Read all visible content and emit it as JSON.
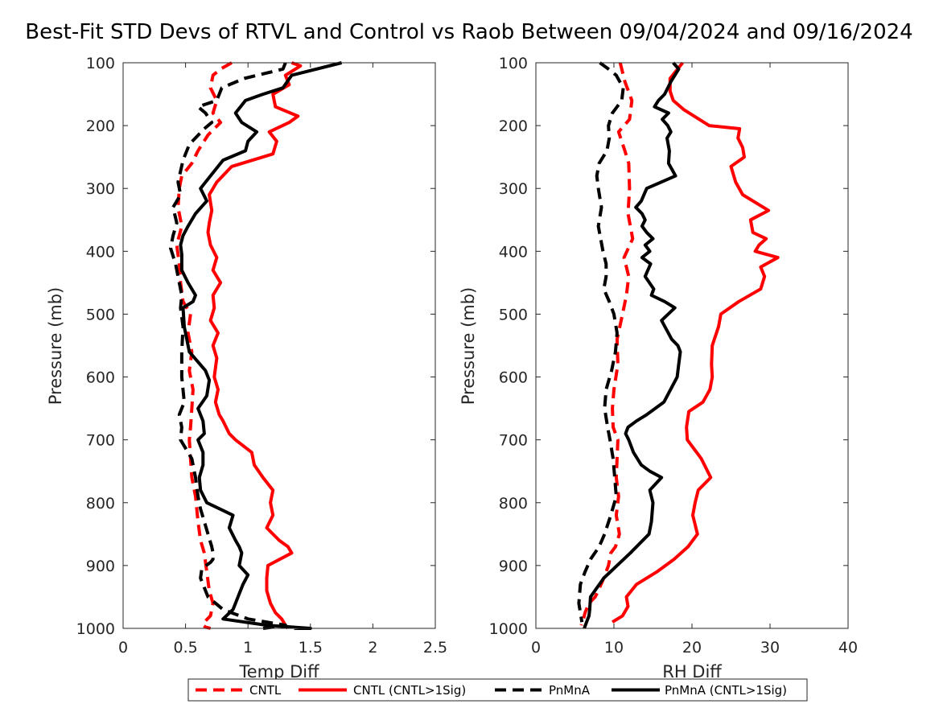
{
  "title": "Best-Fit STD Devs of RTVL and Control vs Raob Between 09/04/2024 and 09/16/2024",
  "legend": {
    "entries": [
      {
        "label": "CNTL",
        "color": "#ff0000",
        "dashed": true
      },
      {
        "label": "CNTL (CNTL>1Sig)",
        "color": "#ff0000",
        "dashed": false
      },
      {
        "label": "PnMnA",
        "color": "#000000",
        "dashed": true
      },
      {
        "label": "PnMnA (CNTL>1Sig)",
        "color": "#000000",
        "dashed": false
      }
    ]
  },
  "chart_data": [
    {
      "type": "line",
      "xlabel": "Temp Diff",
      "ylabel": "Pressure (mb)",
      "xlim": [
        0,
        2.5
      ],
      "ylim": [
        100,
        1000
      ],
      "y_reversed": true,
      "grid": false,
      "xticks": [
        "0",
        "0.5",
        "1",
        "1.5",
        "2",
        "2.5"
      ],
      "yticks": [
        "100",
        "200",
        "300",
        "400",
        "500",
        "600",
        "700",
        "800",
        "900",
        "1000"
      ],
      "series": [
        {
          "name": "CNTL",
          "color": "#ff0000",
          "dashed": true,
          "x": [
            0.87,
            0.78,
            0.72,
            0.7,
            0.75,
            0.72,
            0.78,
            0.68,
            0.6,
            0.55,
            0.47,
            0.45,
            0.44,
            0.47,
            0.43,
            0.45,
            0.46,
            0.48,
            0.54,
            0.52,
            0.55,
            0.53,
            0.56,
            0.55,
            0.54,
            0.53,
            0.54,
            0.55,
            0.58,
            0.6,
            0.62,
            0.65,
            0.67,
            0.69,
            0.72,
            0.7,
            0.65,
            0.64,
            0.66,
            0.7
          ],
          "y": [
            100,
            110,
            120,
            140,
            160,
            180,
            195,
            215,
            240,
            260,
            280,
            300,
            330,
            360,
            390,
            420,
            450,
            480,
            500,
            530,
            560,
            590,
            620,
            650,
            680,
            700,
            730,
            760,
            790,
            830,
            860,
            880,
            910,
            940,
            960,
            980,
            990,
            995,
            998,
            1000
          ]
        },
        {
          "name": "CNTL (CNTL>1Sig)",
          "color": "#ff0000",
          "dashed": true,
          "solid": true,
          "x": [
            1.35,
            1.42,
            1.3,
            1.33,
            1.2,
            1.22,
            1.4,
            1.33,
            1.17,
            1.23,
            1.2,
            0.87,
            0.75,
            0.69,
            0.71,
            0.69,
            0.68,
            0.7,
            0.75,
            0.72,
            0.78,
            0.72,
            0.73,
            0.7,
            0.76,
            0.72,
            0.75,
            0.73,
            0.76,
            0.74,
            0.77,
            0.8,
            0.85,
            0.9,
            1.03,
            1.05,
            1.12,
            1.2,
            1.18,
            1.2,
            1.15,
            1.25,
            1.32,
            1.35,
            1.16,
            1.15,
            1.15,
            1.18,
            1.22,
            1.27,
            1.3,
            1.32
          ],
          "y": [
            100,
            105,
            120,
            135,
            150,
            170,
            185,
            195,
            210,
            225,
            245,
            265,
            290,
            310,
            335,
            355,
            370,
            390,
            410,
            430,
            450,
            470,
            490,
            510,
            530,
            550,
            570,
            600,
            620,
            640,
            660,
            670,
            690,
            700,
            720,
            740,
            760,
            780,
            800,
            820,
            840,
            860,
            870,
            880,
            900,
            920,
            940,
            960,
            975,
            985,
            995,
            1000
          ]
        },
        {
          "name": "PnMnA",
          "color": "#000000",
          "dashed": true,
          "x": [
            1.3,
            1.28,
            0.97,
            0.79,
            0.75,
            0.6,
            0.66,
            0.71,
            0.65,
            0.53,
            0.48,
            0.44,
            0.46,
            0.4,
            0.43,
            0.4,
            0.38,
            0.42,
            0.45,
            0.47,
            0.46,
            0.48,
            0.47,
            0.47,
            0.49,
            0.45,
            0.47,
            0.46,
            0.55,
            0.58,
            0.6,
            0.62,
            0.65,
            0.68,
            0.71,
            0.72,
            0.72,
            0.7,
            0.63,
            0.62,
            0.68,
            0.8,
            1.0,
            1.3,
            1.2,
            1.12
          ],
          "y": [
            100,
            110,
            125,
            140,
            160,
            170,
            180,
            195,
            205,
            230,
            255,
            290,
            310,
            330,
            355,
            375,
            395,
            420,
            450,
            470,
            490,
            520,
            560,
            600,
            640,
            660,
            680,
            700,
            730,
            760,
            790,
            810,
            830,
            850,
            870,
            880,
            890,
            895,
            905,
            920,
            950,
            970,
            985,
            995,
            998,
            1000
          ]
        },
        {
          "name": "PnMnA (CNTL>1Sig)",
          "color": "#000000",
          "dashed": false,
          "solid": true,
          "x": [
            1.75,
            1.35,
            1.28,
            1.12,
            0.98,
            0.9,
            0.95,
            1.07,
            1.0,
            0.98,
            0.8,
            0.72,
            0.62,
            0.67,
            0.58,
            0.52,
            0.48,
            0.46,
            0.47,
            0.47,
            0.52,
            0.58,
            0.56,
            0.48,
            0.49,
            0.53,
            0.66,
            0.69,
            0.67,
            0.6,
            0.64,
            0.65,
            0.6,
            0.64,
            0.64,
            0.61,
            0.62,
            0.67,
            0.88,
            0.85,
            0.9,
            0.93,
            0.95,
            0.93,
            1.0,
            0.96,
            0.92,
            0.88,
            0.8,
            1.15,
            1.5,
            1.37
          ],
          "y": [
            100,
            120,
            140,
            150,
            160,
            180,
            195,
            210,
            225,
            240,
            255,
            275,
            300,
            320,
            340,
            360,
            375,
            390,
            405,
            430,
            450,
            470,
            480,
            490,
            520,
            560,
            590,
            605,
            630,
            650,
            670,
            690,
            700,
            720,
            740,
            760,
            780,
            800,
            820,
            840,
            860,
            870,
            880,
            900,
            915,
            930,
            950,
            970,
            985,
            995,
            1000,
            1000
          ]
        }
      ]
    },
    {
      "type": "line",
      "xlabel": "RH Diff",
      "ylabel": "Pressure (mb)",
      "xlim": [
        0,
        40
      ],
      "ylim": [
        100,
        1000
      ],
      "y_reversed": true,
      "grid": false,
      "xticks": [
        "0",
        "10",
        "20",
        "30",
        "40"
      ],
      "yticks": [
        "100",
        "200",
        "300",
        "400",
        "500",
        "600",
        "700",
        "800",
        "900",
        "1000"
      ],
      "series": [
        {
          "name": "CNTL",
          "color": "#ff0000",
          "dashed": true,
          "x": [
            10.8,
            11.4,
            12.3,
            12.0,
            10.6,
            11.4,
            11.9,
            12.0,
            11.8,
            12.4,
            11.3,
            11.9,
            11.6,
            11.1,
            10.4,
            10.5,
            10.0,
            9.8,
            9.9,
            10.5,
            10.4,
            10.3,
            10.6,
            10.3,
            10.7,
            10.2,
            9.6,
            9.3,
            8.7,
            8.0,
            7.6,
            6.8,
            6.3,
            6.1,
            5.8
          ],
          "y": [
            100,
            130,
            160,
            190,
            210,
            240,
            260,
            300,
            340,
            380,
            410,
            440,
            470,
            500,
            540,
            580,
            620,
            650,
            680,
            700,
            730,
            760,
            790,
            820,
            850,
            870,
            880,
            900,
            920,
            940,
            950,
            960,
            975,
            985,
            995
          ]
        },
        {
          "name": "CNTL (CNTL>1Sig)",
          "color": "#ff0000",
          "dashed": false,
          "solid": true,
          "x": [
            18.8,
            17.2,
            17.2,
            17.6,
            19.0,
            22.2,
            26.1,
            25.9,
            26.5,
            26.7,
            25.0,
            25.6,
            26.5,
            29.8,
            27.5,
            27.8,
            29.5,
            28.6,
            28.1,
            31.0,
            28.8,
            29.3,
            28.8,
            26.0,
            23.7,
            23.4,
            22.6,
            22.5,
            22.6,
            22.3,
            21.4,
            19.6,
            19.3,
            19.4,
            21.2,
            22.4,
            20.8,
            20.4,
            20.1,
            20.7,
            19.5,
            17.7,
            15.5,
            12.9,
            11.6,
            11.8,
            11.1,
            9.8
          ],
          "y": [
            100,
            125,
            145,
            160,
            175,
            200,
            205,
            220,
            235,
            250,
            265,
            290,
            310,
            335,
            350,
            370,
            380,
            390,
            400,
            410,
            425,
            440,
            460,
            480,
            500,
            520,
            550,
            580,
            600,
            620,
            640,
            655,
            680,
            700,
            730,
            760,
            780,
            800,
            820,
            850,
            870,
            890,
            910,
            930,
            950,
            965,
            980,
            990
          ]
        },
        {
          "name": "PnMnA",
          "color": "#000000",
          "dashed": true,
          "x": [
            8.2,
            9.3,
            10.3,
            11.2,
            11.0,
            9.8,
            9.3,
            9.4,
            9.1,
            8.1,
            7.8,
            8.0,
            8.4,
            8.0,
            8.3,
            8.6,
            9.0,
            9.0,
            8.7,
            9.4,
            10.0,
            10.4,
            10.2,
            9.7,
            9.0,
            8.8,
            9.2,
            9.5,
            9.9,
            10.1,
            10.3,
            9.6,
            8.8,
            8.1,
            7.0,
            6.3,
            5.7,
            5.5,
            5.9
          ],
          "y": [
            100,
            110,
            120,
            140,
            160,
            180,
            200,
            220,
            240,
            260,
            280,
            300,
            330,
            360,
            380,
            400,
            420,
            440,
            460,
            480,
            500,
            530,
            560,
            590,
            620,
            650,
            680,
            700,
            730,
            760,
            790,
            820,
            850,
            870,
            890,
            910,
            930,
            960,
            990
          ]
        },
        {
          "name": "PnMnA (CNTL>1Sig)",
          "color": "#000000",
          "dashed": false,
          "solid": true,
          "x": [
            17.6,
            18.3,
            17.3,
            16.5,
            15.7,
            15.2,
            17.0,
            16.2,
            16.9,
            17.3,
            16.8,
            17.1,
            17.0,
            17.9,
            14.2,
            13.5,
            12.8,
            13.6,
            14.0,
            13.6,
            14.2,
            15.0,
            14.0,
            14.6,
            13.6,
            14.7,
            14.0,
            15.1,
            14.8,
            16.5,
            17.8,
            16.1,
            17.4,
            18.2,
            18.5,
            18.3,
            18.1,
            16.4,
            14.2,
            12.9,
            11.8,
            11.5,
            11.9,
            12.5,
            13.5,
            14.6,
            16.1,
            14.6,
            15.0,
            14.8,
            14.5,
            12.1,
            8.7,
            7.0,
            6.9,
            6.8,
            6.5,
            6.2
          ],
          "y": [
            100,
            110,
            130,
            150,
            160,
            170,
            180,
            190,
            200,
            210,
            220,
            240,
            260,
            280,
            300,
            320,
            330,
            340,
            350,
            360,
            370,
            380,
            390,
            400,
            410,
            420,
            440,
            460,
            470,
            480,
            490,
            510,
            540,
            550,
            560,
            580,
            600,
            640,
            660,
            670,
            680,
            690,
            700,
            720,
            740,
            750,
            760,
            780,
            800,
            830,
            850,
            880,
            920,
            950,
            970,
            980,
            990,
            1000
          ]
        }
      ]
    }
  ]
}
